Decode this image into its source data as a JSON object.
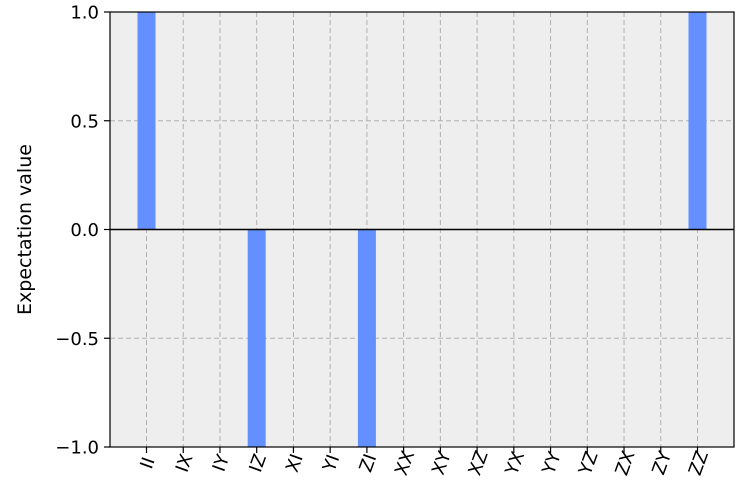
{
  "chart_data": {
    "type": "bar",
    "categories": [
      "II",
      "IX",
      "IY",
      "IZ",
      "XI",
      "YI",
      "ZI",
      "XX",
      "XY",
      "XZ",
      "YX",
      "YY",
      "YZ",
      "ZX",
      "ZY",
      "ZZ"
    ],
    "values": [
      1.0,
      0,
      0,
      -1.0,
      0,
      0,
      -1.0,
      0,
      0,
      0,
      0,
      0,
      0,
      0,
      0,
      1.0
    ],
    "title": "",
    "xlabel": "",
    "ylabel": "Expectation value",
    "ylim": [
      -1.0,
      1.0
    ],
    "yticks": [
      "−1.0",
      "−0.5",
      "0.0",
      "0.5",
      "1.0"
    ],
    "ytick_values": [
      -1.0,
      -0.5,
      0.0,
      0.5,
      1.0
    ],
    "grid": true,
    "grid_style": "dashed",
    "bar_color": "#648fff",
    "plot_background": "#eeeeee",
    "grid_color": "#b0b0b0",
    "zero_line": true
  }
}
